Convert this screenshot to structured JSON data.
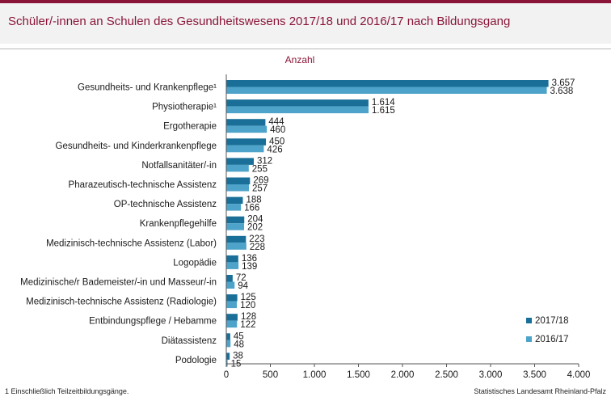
{
  "header": {
    "title": "Schüler/-innen an Schulen des Gesundheitswesens 2017/18 und 2016/17 nach Bildungsgang"
  },
  "footer": {
    "footnote": "1 Einschließlich Teilzeitbildungsgänge.",
    "source": "Statistisches Landesamt Rheinland-Pfalz"
  },
  "chart_data": {
    "type": "bar",
    "orientation": "horizontal",
    "unit_label": "Anzahl",
    "categories": [
      "Gesundheits- und Krankenpflege¹",
      "Physiotherapie¹",
      "Ergotherapie",
      "Gesundheits- und Kinderkrankenpflege",
      "Notfallsanitäter/-in",
      "Pharazeutisch-technische Assistenz",
      "OP-technische Assistenz",
      "Krankenpflegehilfe",
      "Medizinisch-technische Assistenz (Labor)",
      "Logopädie",
      "Medizinische/r Bademeister/-in und Masseur/-in",
      "Medizinisch-technische Assistenz (Radiologie)",
      "Entbindungspflege / Hebamme",
      "Diätassistenz",
      "Podologie"
    ],
    "series": [
      {
        "name": "2017/18",
        "color": "#1a6f98",
        "values": [
          3657,
          1614,
          444,
          450,
          312,
          269,
          188,
          204,
          223,
          136,
          72,
          125,
          128,
          45,
          38
        ],
        "labels": [
          "3.657",
          "1.614",
          "444",
          "450",
          "312",
          "269",
          "188",
          "204",
          "223",
          "136",
          "72",
          "125",
          "128",
          "45",
          "38"
        ]
      },
      {
        "name": "2016/17",
        "color": "#4da3c9",
        "values": [
          3638,
          1615,
          460,
          426,
          255,
          257,
          166,
          202,
          228,
          139,
          94,
          120,
          122,
          48,
          15
        ],
        "labels": [
          "3.638",
          "1.615",
          "460",
          "426",
          "255",
          "257",
          "166",
          "202",
          "228",
          "139",
          "94",
          "120",
          "122",
          "48",
          "15"
        ]
      }
    ],
    "xlim": [
      0,
      4000
    ],
    "xticks": [
      0,
      500,
      1000,
      1500,
      2000,
      2500,
      3000,
      3500,
      4000
    ],
    "xtick_labels": [
      "0",
      "500",
      "1.000",
      "1.500",
      "2.000",
      "2.500",
      "3.000",
      "3.500",
      "4.000"
    ],
    "legend_position": "bottom-right",
    "grid": false
  }
}
